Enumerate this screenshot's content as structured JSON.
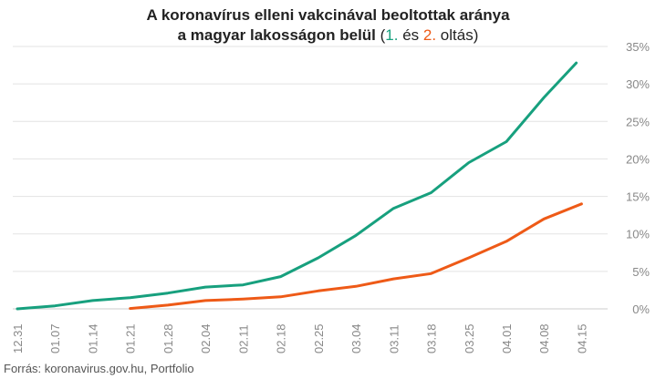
{
  "title": {
    "line1": "A koronavírus elleni vakcinával beoltottak aránya",
    "line2_main": "a magyar lakosságon belül",
    "paren_open": " (",
    "dose1": "1.",
    "and": " és ",
    "dose2": "2.",
    "dose_word": " oltás",
    "paren_close": ")"
  },
  "source": "Forrás: koronavirus.gov.hu, Portfolio",
  "colors": {
    "dose1": "#17a07e",
    "dose2": "#ee5a17",
    "grid": "#e3e3e3",
    "tick_text": "#888888"
  },
  "chart_data": {
    "type": "line",
    "xlabel": "",
    "ylabel": "",
    "ylim": [
      0,
      35
    ],
    "y_ticks": [
      "0%",
      "5%",
      "10%",
      "15%",
      "20%",
      "25%",
      "30%",
      "35%"
    ],
    "x_tick_labels": [
      "12.31",
      "01.07",
      "01.14",
      "01.21",
      "01.28",
      "02.04",
      "02.11",
      "02.18",
      "02.25",
      "03.04",
      "03.11",
      "03.18",
      "03.25",
      "04.01",
      "04.08",
      "04.15"
    ],
    "grid": "horizontal",
    "series": [
      {
        "name": "1.",
        "color": "#17a07e",
        "points": [
          [
            "12.31",
            0.0
          ],
          [
            "01.07",
            0.4
          ],
          [
            "01.14",
            1.1
          ],
          [
            "01.21",
            1.5
          ],
          [
            "01.28",
            2.1
          ],
          [
            "02.04",
            2.9
          ],
          [
            "02.11",
            3.2
          ],
          [
            "02.18",
            4.3
          ],
          [
            "02.25",
            6.8
          ],
          [
            "03.04",
            9.8
          ],
          [
            "03.11",
            13.4
          ],
          [
            "03.18",
            15.5
          ],
          [
            "03.25",
            19.5
          ],
          [
            "04.01",
            22.3
          ],
          [
            "04.08",
            28.2
          ],
          [
            "04.14",
            32.8
          ]
        ]
      },
      {
        "name": "2.",
        "color": "#ee5a17",
        "points": [
          [
            "01.21",
            0.05
          ],
          [
            "01.28",
            0.5
          ],
          [
            "02.04",
            1.1
          ],
          [
            "02.11",
            1.3
          ],
          [
            "02.18",
            1.6
          ],
          [
            "02.25",
            2.4
          ],
          [
            "03.04",
            3.0
          ],
          [
            "03.11",
            4.0
          ],
          [
            "03.18",
            4.7
          ],
          [
            "03.25",
            6.8
          ],
          [
            "04.01",
            9.0
          ],
          [
            "04.08",
            12.0
          ],
          [
            "04.15",
            14.0
          ]
        ]
      }
    ]
  }
}
